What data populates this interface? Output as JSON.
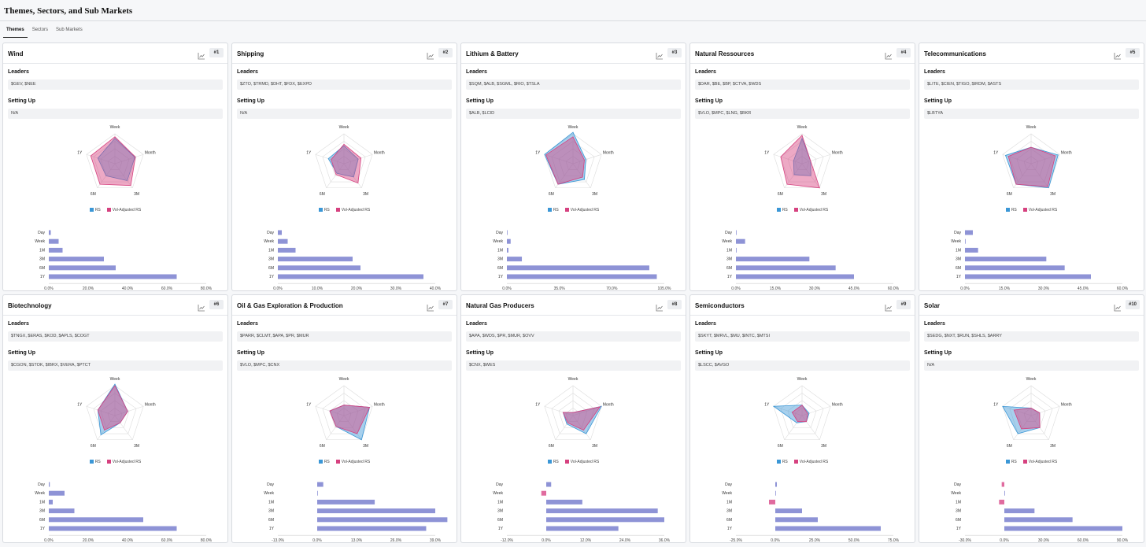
{
  "header": {
    "title": "Themes, Sectors, and Sub Markets"
  },
  "tabs": [
    {
      "label": "Themes",
      "active": true
    },
    {
      "label": "Sectors",
      "active": false
    },
    {
      "label": "Sub Markets",
      "active": false
    }
  ],
  "labels": {
    "leaders": "Leaders",
    "setting_up": "Setting Up",
    "rs": "RS",
    "vol_rs": "Vol-Adjusted RS"
  },
  "colors": {
    "rs": "#3b97d6",
    "vol": "#d6417f",
    "bar": "#8e93d6",
    "bar_neg": "#e06b9f"
  },
  "radar_axes": [
    "Week",
    "Month",
    "3M",
    "6M",
    "1Y"
  ],
  "bar_labels": [
    "Day",
    "Week",
    "1M",
    "3M",
    "6M",
    "1Y"
  ],
  "cards": [
    {
      "title": "Wind",
      "rank": "#1",
      "leaders": "$GEV, $NEE",
      "setting_up": "N/A",
      "rs": [
        0.85,
        0.7,
        0.7,
        0.5,
        0.6
      ],
      "vol": [
        0.9,
        0.72,
        0.9,
        0.85,
        0.85
      ],
      "bars": [
        1,
        5,
        7,
        28,
        34,
        65
      ],
      "ticks": [
        "0.0%",
        "20.0%",
        "40.0%",
        "60.0%",
        "80.0%"
      ],
      "min": 0,
      "max": 80
    },
    {
      "title": "Shipping",
      "rank": "#2",
      "leaders": "$ZTO, $TRMD, $DHT, $FDX, $EXPD",
      "setting_up": "N/A",
      "rs": [
        0.6,
        0.5,
        0.55,
        0.4,
        0.55
      ],
      "vol": [
        0.65,
        0.6,
        0.8,
        0.45,
        0.45
      ],
      "bars": [
        1,
        2.5,
        4.5,
        19,
        21,
        37
      ],
      "ticks": [
        "0.0%",
        "10.0%",
        "20.0%",
        "30.0%",
        "40.0%"
      ],
      "min": 0,
      "max": 40
    },
    {
      "title": "Lithium & Battery",
      "rank": "#3",
      "leaders": "$SQM, $ALB, $SGML, $RIO, $TSLA",
      "setting_up": "$ALB, $LCID",
      "rs": [
        1.05,
        0.45,
        0.65,
        0.85,
        1.0
      ],
      "vol": [
        0.9,
        0.4,
        0.55,
        0.85,
        0.95
      ],
      "bars": [
        0,
        2.5,
        1,
        10,
        95,
        100
      ],
      "ticks": [
        "0.0%",
        "35.0%",
        "70.0%",
        "105.0%"
      ],
      "min": 0,
      "max": 105
    },
    {
      "title": "Natural Ressources",
      "rank": "#4",
      "leaders": "$DAR, $BE, $BP, $CTVA, $WDS",
      "setting_up": "$VLO, $MPC, $LNG, $BKR",
      "rs": [
        0.85,
        0.3,
        0.5,
        0.45,
        0.3
      ],
      "vol": [
        0.95,
        0.3,
        1.0,
        0.85,
        0.75
      ],
      "bars": [
        0,
        3.5,
        0,
        28,
        38,
        45
      ],
      "ticks": [
        "0.0%",
        "15.0%",
        "30.0%",
        "45.0%",
        "60.0%"
      ],
      "min": 0,
      "max": 60
    },
    {
      "title": "Telecommunications",
      "rank": "#5",
      "leaders": "$LITE, $CIEN, $TIGO, $IRDM, $ASTS",
      "setting_up": "$LBTYA",
      "rs": [
        0.55,
        0.95,
        1.0,
        0.85,
        0.9
      ],
      "vol": [
        0.55,
        0.85,
        0.95,
        0.85,
        0.8
      ],
      "bars": [
        3,
        0,
        5,
        31,
        38,
        48
      ],
      "ticks": [
        "0.0%",
        "15.0%",
        "30.0%",
        "45.0%",
        "60.0%"
      ],
      "min": 0,
      "max": 60
    },
    {
      "title": "Biotechnology",
      "rank": "#6",
      "leaders": "$TNGX, $ERAS, $KOD, $APLS, $COGT",
      "setting_up": "$CGON, $STOK, $IBRX, $VERA, $PTCT",
      "rs": [
        1.05,
        0.45,
        0.3,
        0.8,
        0.6
      ],
      "vol": [
        1.0,
        0.45,
        0.3,
        0.6,
        0.6
      ],
      "bars": [
        0.5,
        8,
        2,
        13,
        48,
        65
      ],
      "ticks": [
        "0.0%",
        "20.0%",
        "40.0%",
        "60.0%",
        "80.0%"
      ],
      "min": 0,
      "max": 80
    },
    {
      "title": "Oil & Gas Exploration & Production",
      "rank": "#7",
      "leaders": "$PARR, $CLMT, $APA, $PR, $MUR",
      "setting_up": "$VLO, $MPC, $CNX",
      "rs": [
        0.35,
        0.9,
        1.0,
        0.45,
        0.5
      ],
      "vol": [
        0.35,
        0.9,
        0.75,
        0.45,
        0.5
      ],
      "bars": [
        2,
        0,
        19,
        39,
        43,
        36
      ],
      "ticks": [
        "-13.0%",
        "0.0%",
        "13.0%",
        "26.0%",
        "39.0%"
      ],
      "min": -13,
      "max": 39
    },
    {
      "title": "Natural Gas Producers",
      "rank": "#8",
      "leaders": "$APA, $WDS, $PR, $MUR, $OVV",
      "setting_up": "$CNX, $WES",
      "rs": [
        0.1,
        1.0,
        0.75,
        0.35,
        0.35
      ],
      "vol": [
        0.1,
        0.95,
        0.6,
        0.3,
        0.35
      ],
      "bars": [
        1.5,
        -1.5,
        11,
        34,
        36,
        22
      ],
      "ticks": [
        "-12.0%",
        "0.0%",
        "12.0%",
        "24.0%",
        "36.0%"
      ],
      "min": -12,
      "max": 36
    },
    {
      "title": "Semiconductors",
      "rank": "#9",
      "leaders": "$SKYT, $MRVL, $MU, $INTC, $MTSI",
      "setting_up": "$LSCC, $AVGO",
      "rs": [
        0.35,
        0.25,
        0.25,
        0.3,
        1.0
      ],
      "vol": [
        0.35,
        0.2,
        0.25,
        0.25,
        0.35
      ],
      "bars": [
        1,
        0.3,
        -4,
        17,
        27,
        67
      ],
      "ticks": [
        "-25.0%",
        "0.0%",
        "25.0%",
        "50.0%",
        "75.0%"
      ],
      "min": -25,
      "max": 75
    },
    {
      "title": "Solar",
      "rank": "#10",
      "leaders": "$SEDG, $NXT, $RUN, $SHLS, $ARRY",
      "setting_up": "N/A",
      "rs": [
        0.25,
        0.3,
        0.5,
        0.75,
        1.0
      ],
      "vol": [
        0.25,
        0.3,
        0.5,
        0.55,
        0.6
      ],
      "bars": [
        -2,
        0.5,
        -4,
        23,
        52,
        90
      ],
      "ticks": [
        "-30.0%",
        "0.0%",
        "30.0%",
        "60.0%",
        "90.0%"
      ],
      "min": -30,
      "max": 90
    }
  ]
}
